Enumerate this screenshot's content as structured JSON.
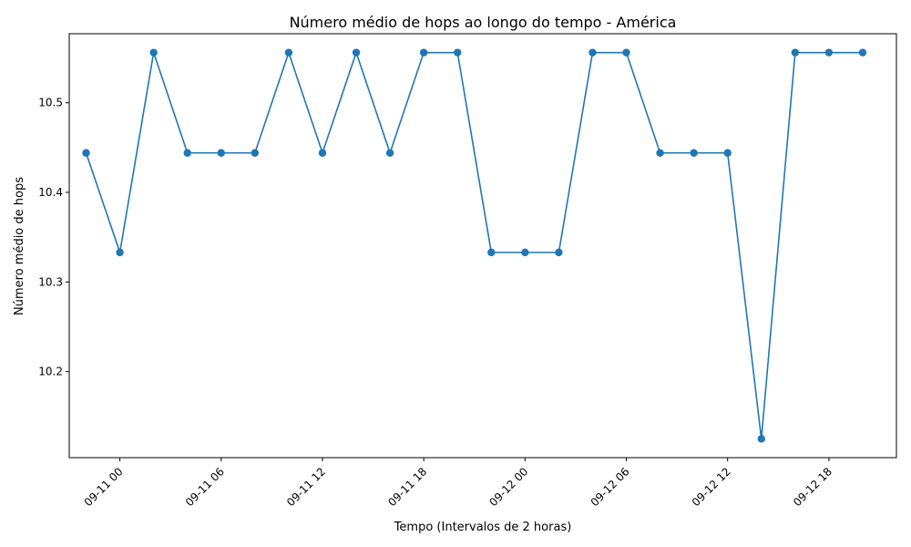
{
  "chart_data": {
    "type": "line",
    "title": "Número médio de hops ao longo do tempo - América",
    "xlabel": "Tempo (Intervalos de 2 horas)",
    "ylabel": "Número médio de hops",
    "grid": false,
    "x_unit": "hours",
    "xlim": [
      "2023-09-10T21:00",
      "2023-09-12T22:00"
    ],
    "ylim": [
      10.104,
      10.577
    ],
    "x_ticks": [
      {
        "t": "2023-09-11T00:00",
        "label": "09-11 00"
      },
      {
        "t": "2023-09-11T06:00",
        "label": "09-11 06"
      },
      {
        "t": "2023-09-11T12:00",
        "label": "09-11 12"
      },
      {
        "t": "2023-09-11T18:00",
        "label": "09-11 18"
      },
      {
        "t": "2023-09-12T00:00",
        "label": "09-12 00"
      },
      {
        "t": "2023-09-12T06:00",
        "label": "09-12 06"
      },
      {
        "t": "2023-09-12T12:00",
        "label": "09-12 12"
      },
      {
        "t": "2023-09-12T18:00",
        "label": "09-12 18"
      }
    ],
    "y_ticks": [
      {
        "v": 10.2,
        "label": "10.2"
      },
      {
        "v": 10.3,
        "label": "10.3"
      },
      {
        "v": 10.4,
        "label": "10.4"
      },
      {
        "v": 10.5,
        "label": "10.5"
      }
    ],
    "series": [
      {
        "color": "#1f77b4",
        "x": [
          "2023-09-10T22:00",
          "2023-09-11T00:00",
          "2023-09-11T02:00",
          "2023-09-11T04:00",
          "2023-09-11T06:00",
          "2023-09-11T08:00",
          "2023-09-11T10:00",
          "2023-09-11T12:00",
          "2023-09-11T14:00",
          "2023-09-11T16:00",
          "2023-09-11T18:00",
          "2023-09-11T20:00",
          "2023-09-11T22:00",
          "2023-09-12T00:00",
          "2023-09-12T02:00",
          "2023-09-12T04:00",
          "2023-09-12T06:00",
          "2023-09-12T08:00",
          "2023-09-12T10:00",
          "2023-09-12T12:00",
          "2023-09-12T14:00",
          "2023-09-12T16:00",
          "2023-09-12T18:00",
          "2023-09-12T20:00"
        ],
        "y": [
          10.444,
          10.333,
          10.556,
          10.444,
          10.444,
          10.444,
          10.556,
          10.444,
          10.556,
          10.444,
          10.556,
          10.556,
          10.333,
          10.333,
          10.333,
          10.556,
          10.556,
          10.444,
          10.444,
          10.444,
          10.125,
          10.556,
          10.556,
          10.556
        ]
      }
    ]
  }
}
